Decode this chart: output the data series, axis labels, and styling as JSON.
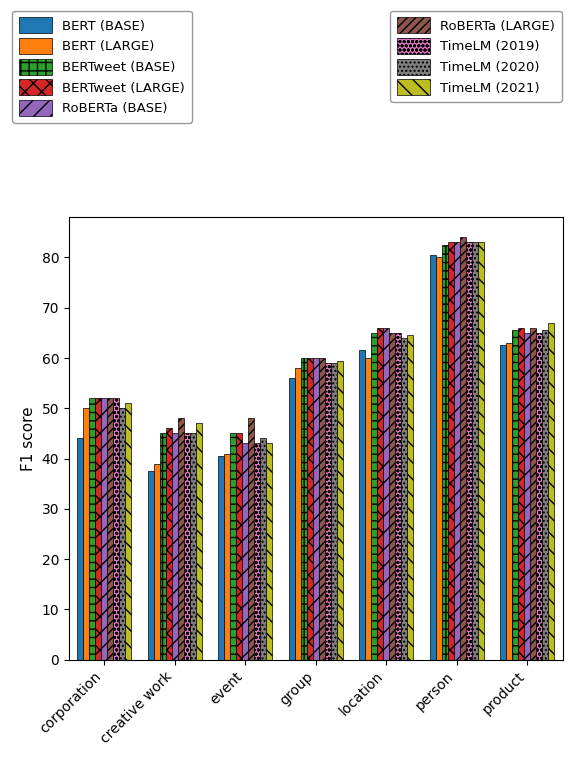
{
  "categories": [
    "corporation",
    "creative work",
    "event",
    "group",
    "location",
    "person",
    "product"
  ],
  "models": [
    "BERT (BASE)",
    "BERT (LARGE)",
    "BERTweet (BASE)",
    "BERTweet (LARGE)",
    "RoBERTa (BASE)",
    "RoBERTa (LARGE)",
    "TimeLM (2019)",
    "TimeLM (2020)",
    "TimeLM (2021)"
  ],
  "values": {
    "corporation": [
      44,
      50,
      52,
      52,
      52,
      52,
      52,
      50,
      51
    ],
    "creative work": [
      37.5,
      39,
      45,
      46,
      45,
      48,
      45,
      45,
      47
    ],
    "event": [
      40.5,
      41,
      45,
      45,
      43,
      48,
      43,
      44,
      43
    ],
    "group": [
      56,
      58,
      60,
      60,
      60,
      60,
      59,
      59,
      59.5
    ],
    "location": [
      61.5,
      60,
      65,
      66,
      66,
      65,
      65,
      64,
      64.5
    ],
    "person": [
      80.5,
      80,
      82.5,
      83,
      83,
      84,
      83,
      83,
      83
    ],
    "product": [
      62.5,
      63,
      65.5,
      66,
      65,
      66,
      65,
      65.5,
      67
    ]
  },
  "colors": [
    "#1f77b4",
    "#ff7f0e",
    "#2ca02c",
    "#d62728",
    "#9467bd",
    "#8c564b",
    "#e377c2",
    "#7f7f7f",
    "#bcbd22"
  ],
  "ylabel": "F1 score",
  "ylim": [
    0,
    88
  ],
  "yticks": [
    0,
    10,
    20,
    30,
    40,
    50,
    60,
    70,
    80
  ],
  "legend_labels": [
    "BERT (BASE)",
    "BERT (LARGE)",
    "BERTweet (BASE)",
    "BERTweet (LARGE)",
    "RoBERTa (BASE)",
    "RoBERTa (LARGE)",
    "TimeLM (2019)",
    "TimeLM (2020)",
    "TimeLM (2021)"
  ]
}
